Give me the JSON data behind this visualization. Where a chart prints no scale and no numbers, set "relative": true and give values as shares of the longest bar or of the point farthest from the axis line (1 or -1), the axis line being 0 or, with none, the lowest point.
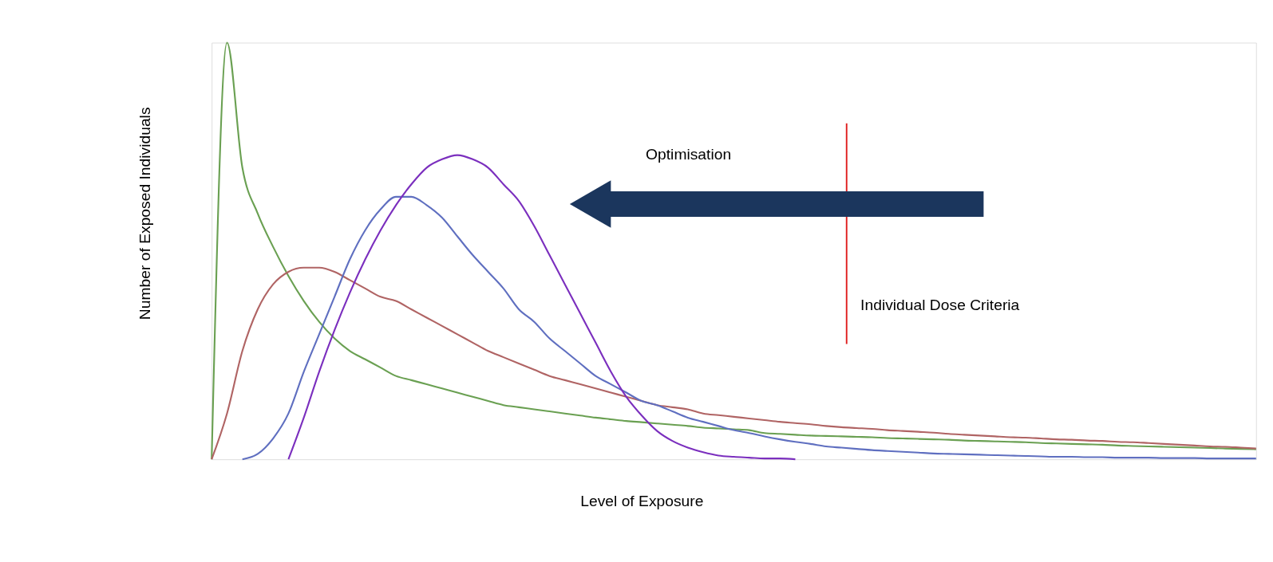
{
  "chart_data": {
    "type": "line",
    "relative": true,
    "xlabel": "Level of Exposure",
    "ylabel": "Number of Exposed Individuals",
    "categories": [
      null,
      null,
      null,
      null,
      null,
      null,
      null,
      null,
      null,
      null,
      null,
      null,
      null,
      null,
      null,
      null,
      null,
      null,
      null,
      null,
      null,
      null,
      null,
      null,
      null,
      null,
      null,
      null,
      null,
      null,
      null,
      null,
      null,
      null,
      null,
      null,
      null,
      null,
      null,
      null,
      null,
      null,
      null,
      null,
      null,
      null,
      null,
      null,
      null,
      null,
      null,
      null,
      null,
      null,
      null,
      null,
      null,
      null,
      null,
      null,
      null,
      null,
      null,
      null,
      null,
      null,
      null,
      null,
      null
    ],
    "series": [
      {
        "color": "#6aa052",
        "values": [
          0,
          1,
          0.7,
          0.59,
          0.51,
          0.44,
          0.38,
          0.33,
          0.29,
          0.26,
          0.24,
          0.22,
          0.2,
          0.19,
          0.18,
          0.17,
          0.16,
          0.15,
          0.14,
          0.13,
          0.125,
          0.12,
          0.115,
          0.11,
          0.105,
          0.1,
          0.096,
          0.092,
          0.089,
          0.086,
          0.083,
          0.08,
          0.076,
          0.074,
          0.072,
          0.07,
          0.063,
          0.061,
          0.059,
          0.057,
          0.056,
          0.055,
          0.054,
          0.053,
          0.051,
          0.05,
          0.049,
          0.048,
          0.047,
          0.045,
          0.044,
          0.043,
          0.042,
          0.041,
          0.039,
          0.038,
          0.037,
          0.036,
          0.035,
          0.033,
          0.032,
          0.031,
          0.03,
          0.029,
          0.028,
          0.027,
          0.026,
          0.025,
          0.024
        ]
      },
      {
        "color": "#b06464",
        "values": [
          0,
          0.11,
          0.26,
          0.36,
          0.42,
          0.45,
          0.46,
          0.46,
          0.45,
          0.43,
          0.41,
          0.39,
          0.38,
          0.36,
          0.34,
          0.32,
          0.3,
          0.28,
          0.26,
          0.245,
          0.23,
          0.215,
          0.2,
          0.19,
          0.18,
          0.17,
          0.16,
          0.15,
          0.14,
          0.13,
          0.125,
          0.12,
          0.11,
          0.106,
          0.102,
          0.098,
          0.094,
          0.09,
          0.087,
          0.084,
          0.08,
          0.077,
          0.075,
          0.073,
          0.07,
          0.068,
          0.066,
          0.064,
          0.061,
          0.059,
          0.057,
          0.055,
          0.053,
          0.052,
          0.05,
          0.048,
          0.047,
          0.045,
          0.044,
          0.042,
          0.041,
          0.039,
          0.037,
          0.035,
          0.033,
          0.031,
          0.03,
          0.028,
          0.026
        ]
      },
      {
        "color": "#5f6fc0",
        "values": [
          null,
          null,
          0,
          0.013,
          0.05,
          0.11,
          0.21,
          0.3,
          0.39,
          0.48,
          0.55,
          0.6,
          0.63,
          0.63,
          0.61,
          0.58,
          0.535,
          0.49,
          0.45,
          0.41,
          0.36,
          0.33,
          0.29,
          0.26,
          0.23,
          0.2,
          0.18,
          0.16,
          0.14,
          0.13,
          0.115,
          0.1,
          0.09,
          0.08,
          0.07,
          0.063,
          0.055,
          0.048,
          0.042,
          0.037,
          0.031,
          0.028,
          0.025,
          0.022,
          0.02,
          0.018,
          0.016,
          0.014,
          0.013,
          0.012,
          0.011,
          0.01,
          0.009,
          0.008,
          0.007,
          0.006,
          0.006,
          0.005,
          0.005,
          0.004,
          0.004,
          0.004,
          0.003,
          0.003,
          0.003,
          0.002,
          0.002,
          0.002,
          0.002
        ]
      },
      {
        "color": "#7b2fbe",
        "values": [
          null,
          null,
          null,
          null,
          null,
          0,
          0.1,
          0.21,
          0.31,
          0.4,
          0.48,
          0.55,
          0.61,
          0.66,
          0.7,
          0.72,
          0.73,
          0.72,
          0.7,
          0.66,
          0.62,
          0.56,
          0.49,
          0.42,
          0.35,
          0.28,
          0.21,
          0.15,
          0.105,
          0.068,
          0.044,
          0.028,
          0.017,
          0.009,
          0.006,
          0.004,
          0.002,
          0.002,
          0,
          null,
          null,
          null,
          null,
          null,
          null,
          null,
          null,
          null,
          null,
          null,
          null,
          null,
          null,
          null,
          null,
          null,
          null,
          null,
          null,
          null,
          null,
          null,
          null,
          null,
          null,
          null,
          null,
          null,
          null
        ]
      }
    ],
    "annotations": [
      "Optimisation",
      "Individual Dose Criteria"
    ],
    "grid": false
  }
}
